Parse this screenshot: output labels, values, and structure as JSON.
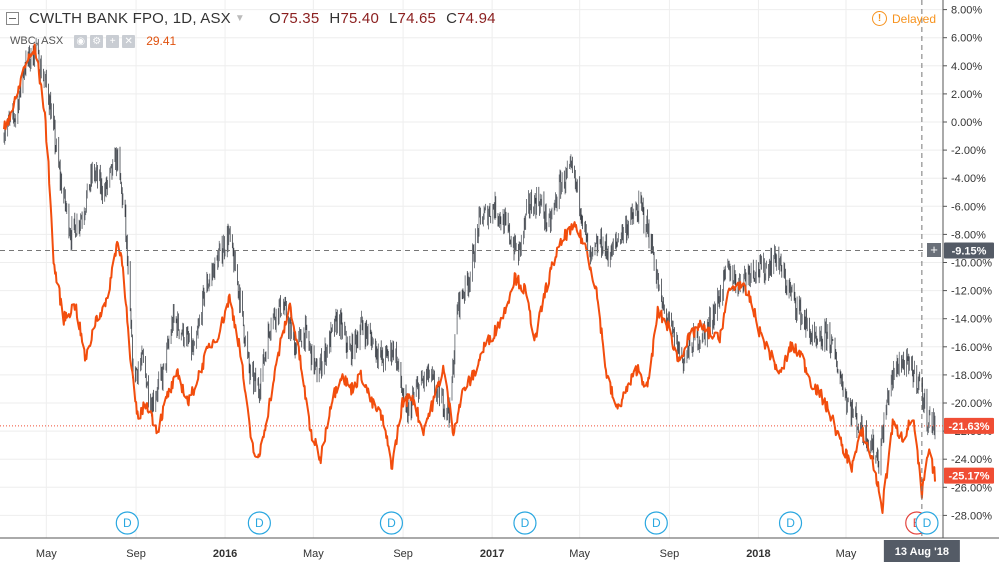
{
  "legend": {
    "symbol": "CWLTH BANK FPO, 1D, ASX",
    "ohlc": [
      {
        "k": "O",
        "v": "75.35"
      },
      {
        "k": "H",
        "v": "75.40"
      },
      {
        "k": "L",
        "v": "74.65"
      },
      {
        "k": "C",
        "v": "74.94"
      }
    ],
    "compare_symbol": "WBC, ASX",
    "compare_value": "29.41",
    "delayed_label": "Delayed"
  },
  "colors": {
    "main_series": "#555555",
    "compare_series": "#f24d0d",
    "grid": "#eeeeee",
    "axis_text": "#333333",
    "marker_red_bg": "#f04d34",
    "dividend_marker": "#2aa7e0",
    "earnings_marker": "#e3453f",
    "crosshair_label_bg": "#545b66"
  },
  "chart_data": {
    "type": "line",
    "ylabel": "",
    "y_scale": "percent",
    "ylim": [
      -29.2,
      8.6
    ],
    "yticks": [
      "8.00%",
      "6.00%",
      "4.00%",
      "2.00%",
      "0.00%",
      "-2.00%",
      "-4.00%",
      "-6.00%",
      "-8.00%",
      "-10.00%",
      "-12.00%",
      "-14.00%",
      "-16.00%",
      "-18.00%",
      "-20.00%",
      "-22.00%",
      "-24.00%",
      "-26.00%",
      "-28.00%"
    ],
    "ytick_values": [
      8,
      6,
      4,
      2,
      0,
      -2,
      -4,
      -6,
      -8,
      -10,
      -12,
      -14,
      -16,
      -18,
      -20,
      -22,
      -24,
      -26,
      -28
    ],
    "x_range": [
      "2015-03-04",
      "2018-08-31"
    ],
    "xticks": [
      {
        "label": "May",
        "date": "2015-05-01"
      },
      {
        "label": "Sep",
        "date": "2015-09-01"
      },
      {
        "label": "2016",
        "date": "2016-01-01"
      },
      {
        "label": "May",
        "date": "2016-05-01"
      },
      {
        "label": "Sep",
        "date": "2016-09-01"
      },
      {
        "label": "2017",
        "date": "2017-01-01"
      },
      {
        "label": "May",
        "date": "2017-05-01"
      },
      {
        "label": "Sep",
        "date": "2017-09-01"
      },
      {
        "label": "2018",
        "date": "2018-01-01"
      },
      {
        "label": "May",
        "date": "2018-05-01"
      }
    ],
    "grid": true,
    "series": [
      {
        "name": "CWLTH BANK FPO",
        "style": "ohlc-bars",
        "points": [
          [
            "2015-03-04",
            -0.5
          ],
          [
            "2015-03-20",
            0.5
          ],
          [
            "2015-04-01",
            4.0
          ],
          [
            "2015-04-16",
            5.0
          ],
          [
            "2015-05-04",
            2.0
          ],
          [
            "2015-05-20",
            -4.0
          ],
          [
            "2015-06-04",
            -8.0
          ],
          [
            "2015-06-20",
            -6.5
          ],
          [
            "2015-07-04",
            -3.5
          ],
          [
            "2015-07-20",
            -5.0
          ],
          [
            "2015-08-06",
            -2.5
          ],
          [
            "2015-08-17",
            -7.0
          ],
          [
            "2015-08-28",
            -18.0
          ],
          [
            "2015-09-10",
            -17.0
          ],
          [
            "2015-09-22",
            -20.0
          ],
          [
            "2015-10-08",
            -18.0
          ],
          [
            "2015-10-22",
            -14.0
          ],
          [
            "2015-11-04",
            -15.0
          ],
          [
            "2015-11-20",
            -16.5
          ],
          [
            "2015-12-04",
            -12.0
          ],
          [
            "2015-12-20",
            -10.0
          ],
          [
            "2016-01-06",
            -8.0
          ],
          [
            "2016-01-20",
            -12.0
          ],
          [
            "2016-02-04",
            -18.0
          ],
          [
            "2016-02-16",
            -19.0
          ],
          [
            "2016-03-04",
            -14.0
          ],
          [
            "2016-03-20",
            -13.0
          ],
          [
            "2016-04-06",
            -16.0
          ],
          [
            "2016-04-20",
            -15.0
          ],
          [
            "2016-05-06",
            -18.0
          ],
          [
            "2016-05-20",
            -16.0
          ],
          [
            "2016-06-04",
            -14.0
          ],
          [
            "2016-06-20",
            -16.5
          ],
          [
            "2016-07-06",
            -14.5
          ],
          [
            "2016-07-20",
            -15.5
          ],
          [
            "2016-08-04",
            -17.0
          ],
          [
            "2016-08-20",
            -16.0
          ],
          [
            "2016-09-06",
            -21.0
          ],
          [
            "2016-09-20",
            -19.0
          ],
          [
            "2016-10-06",
            -18.0
          ],
          [
            "2016-10-20",
            -19.5
          ],
          [
            "2016-11-04",
            -20.5
          ],
          [
            "2016-11-15",
            -13.0
          ],
          [
            "2016-12-01",
            -11.0
          ],
          [
            "2016-12-15",
            -7.0
          ],
          [
            "2017-01-04",
            -6.0
          ],
          [
            "2017-01-20",
            -7.5
          ],
          [
            "2017-02-06",
            -9.5
          ],
          [
            "2017-02-20",
            -6.0
          ],
          [
            "2017-03-06",
            -5.5
          ],
          [
            "2017-03-20",
            -7.5
          ],
          [
            "2017-04-04",
            -4.5
          ],
          [
            "2017-04-20",
            -3.5
          ],
          [
            "2017-05-01",
            -5.5
          ],
          [
            "2017-05-15",
            -10.0
          ],
          [
            "2017-05-29",
            -8.5
          ],
          [
            "2017-06-12",
            -9.5
          ],
          [
            "2017-06-26",
            -8.0
          ],
          [
            "2017-07-10",
            -7.0
          ],
          [
            "2017-07-24",
            -6.0
          ],
          [
            "2017-08-07",
            -8.5
          ],
          [
            "2017-08-21",
            -13.0
          ],
          [
            "2017-09-05",
            -15.0
          ],
          [
            "2017-09-20",
            -17.0
          ],
          [
            "2017-10-05",
            -15.5
          ],
          [
            "2017-10-20",
            -15.0
          ],
          [
            "2017-11-05",
            -13.0
          ],
          [
            "2017-11-20",
            -10.5
          ],
          [
            "2017-12-05",
            -11.5
          ],
          [
            "2017-12-20",
            -10.5
          ],
          [
            "2018-01-10",
            -10.5
          ],
          [
            "2018-01-25",
            -9.5
          ],
          [
            "2018-02-08",
            -11.5
          ],
          [
            "2018-02-22",
            -13.0
          ],
          [
            "2018-03-08",
            -14.5
          ],
          [
            "2018-03-22",
            -16.0
          ],
          [
            "2018-04-06",
            -15.0
          ],
          [
            "2018-04-20",
            -17.5
          ],
          [
            "2018-05-04",
            -20.0
          ],
          [
            "2018-05-18",
            -21.5
          ],
          [
            "2018-06-01",
            -22.5
          ],
          [
            "2018-06-15",
            -24.0
          ],
          [
            "2018-06-29",
            -19.0
          ],
          [
            "2018-07-13",
            -17.0
          ],
          [
            "2018-07-27",
            -17.5
          ],
          [
            "2018-08-10",
            -18.5
          ],
          [
            "2018-08-20",
            -21.0
          ],
          [
            "2018-08-31",
            -21.63
          ]
        ]
      },
      {
        "name": "WBC, ASX",
        "style": "line",
        "points": [
          [
            "2015-03-04",
            -0.5
          ],
          [
            "2015-03-20",
            1.5
          ],
          [
            "2015-04-01",
            4.0
          ],
          [
            "2015-04-16",
            5.2
          ],
          [
            "2015-04-28",
            1.0
          ],
          [
            "2015-05-04",
            -3.0
          ],
          [
            "2015-05-11",
            -10.0
          ],
          [
            "2015-05-25",
            -14.0
          ],
          [
            "2015-06-10",
            -13.0
          ],
          [
            "2015-06-24",
            -17.0
          ],
          [
            "2015-07-08",
            -14.0
          ],
          [
            "2015-07-22",
            -13.0
          ],
          [
            "2015-08-06",
            -8.5
          ],
          [
            "2015-08-14",
            -10.0
          ],
          [
            "2015-08-24",
            -17.0
          ],
          [
            "2015-09-03",
            -21.0
          ],
          [
            "2015-09-16",
            -20.0
          ],
          [
            "2015-09-30",
            -22.0
          ],
          [
            "2015-10-14",
            -19.5
          ],
          [
            "2015-10-28",
            -18.0
          ],
          [
            "2015-11-12",
            -20.0
          ],
          [
            "2015-11-26",
            -18.0
          ],
          [
            "2015-12-10",
            -16.0
          ],
          [
            "2015-12-24",
            -15.0
          ],
          [
            "2016-01-07",
            -12.5
          ],
          [
            "2016-01-21",
            -16.0
          ],
          [
            "2016-02-04",
            -22.0
          ],
          [
            "2016-02-14",
            -24.5
          ],
          [
            "2016-03-02",
            -20.0
          ],
          [
            "2016-03-16",
            -16.0
          ],
          [
            "2016-03-30",
            -13.0
          ],
          [
            "2016-04-13",
            -17.0
          ],
          [
            "2016-04-27",
            -22.0
          ],
          [
            "2016-05-11",
            -24.0
          ],
          [
            "2016-05-25",
            -20.0
          ],
          [
            "2016-06-08",
            -18.0
          ],
          [
            "2016-06-22",
            -19.0
          ],
          [
            "2016-07-06",
            -18.0
          ],
          [
            "2016-07-20",
            -20.0
          ],
          [
            "2016-08-03",
            -21.0
          ],
          [
            "2016-08-17",
            -24.5
          ],
          [
            "2016-08-31",
            -20.0
          ],
          [
            "2016-09-14",
            -19.5
          ],
          [
            "2016-09-28",
            -22.0
          ],
          [
            "2016-10-12",
            -20.0
          ],
          [
            "2016-10-26",
            -17.5
          ],
          [
            "2016-11-09",
            -22.0
          ],
          [
            "2016-11-23",
            -19.0
          ],
          [
            "2016-12-07",
            -18.0
          ],
          [
            "2016-12-21",
            -16.0
          ],
          [
            "2017-01-04",
            -15.0
          ],
          [
            "2017-01-18",
            -13.5
          ],
          [
            "2017-02-01",
            -11.0
          ],
          [
            "2017-02-15",
            -12.0
          ],
          [
            "2017-03-01",
            -15.5
          ],
          [
            "2017-03-15",
            -12.0
          ],
          [
            "2017-03-29",
            -9.5
          ],
          [
            "2017-04-12",
            -8.0
          ],
          [
            "2017-04-26",
            -7.5
          ],
          [
            "2017-05-10",
            -9.0
          ],
          [
            "2017-05-24",
            -12.0
          ],
          [
            "2017-06-07",
            -18.0
          ],
          [
            "2017-06-21",
            -20.5
          ],
          [
            "2017-07-05",
            -19.0
          ],
          [
            "2017-07-19",
            -17.5
          ],
          [
            "2017-08-02",
            -19.0
          ],
          [
            "2017-08-16",
            -13.5
          ],
          [
            "2017-08-30",
            -14.5
          ],
          [
            "2017-09-13",
            -17.0
          ],
          [
            "2017-09-27",
            -15.5
          ],
          [
            "2017-10-11",
            -14.5
          ],
          [
            "2017-10-25",
            -15.0
          ],
          [
            "2017-11-08",
            -15.5
          ],
          [
            "2017-11-22",
            -12.0
          ],
          [
            "2017-12-06",
            -11.5
          ],
          [
            "2017-12-20",
            -12.5
          ],
          [
            "2018-01-03",
            -15.0
          ],
          [
            "2018-01-17",
            -16.5
          ],
          [
            "2018-01-31",
            -18.0
          ],
          [
            "2018-02-14",
            -16.0
          ],
          [
            "2018-02-28",
            -16.5
          ],
          [
            "2018-03-14",
            -18.5
          ],
          [
            "2018-03-28",
            -19.5
          ],
          [
            "2018-04-11",
            -21.0
          ],
          [
            "2018-04-25",
            -23.0
          ],
          [
            "2018-05-09",
            -24.5
          ],
          [
            "2018-05-23",
            -22.0
          ],
          [
            "2018-06-06",
            -24.0
          ],
          [
            "2018-06-20",
            -27.5
          ],
          [
            "2018-07-04",
            -21.5
          ],
          [
            "2018-07-18",
            -22.5
          ],
          [
            "2018-08-01",
            -21.0
          ],
          [
            "2018-08-13",
            -26.5
          ],
          [
            "2018-08-22",
            -23.5
          ],
          [
            "2018-08-31",
            -25.17
          ]
        ]
      }
    ],
    "reference_lines": [
      {
        "value": -9.15,
        "label": "-9.15%",
        "style": "crosshair",
        "color": "#545b66"
      },
      {
        "value": -21.63,
        "label": "-21.63%",
        "style": "dotted",
        "color": "#f04d34"
      },
      {
        "value": -25.17,
        "label": "-25.17%",
        "style": "label-only",
        "color": "#f04d34"
      }
    ],
    "crosshair_x": {
      "date": "2018-08-13",
      "label": "13 Aug '18"
    },
    "event_markers": [
      {
        "kind": "D",
        "date": "2015-08-20"
      },
      {
        "kind": "D",
        "date": "2016-02-17"
      },
      {
        "kind": "D",
        "date": "2016-08-16"
      },
      {
        "kind": "D",
        "date": "2017-02-15"
      },
      {
        "kind": "D",
        "date": "2017-08-14"
      },
      {
        "kind": "D",
        "date": "2018-02-14"
      },
      {
        "kind": "E",
        "date": "2018-08-06"
      },
      {
        "kind": "D",
        "date": "2018-08-20"
      }
    ]
  }
}
